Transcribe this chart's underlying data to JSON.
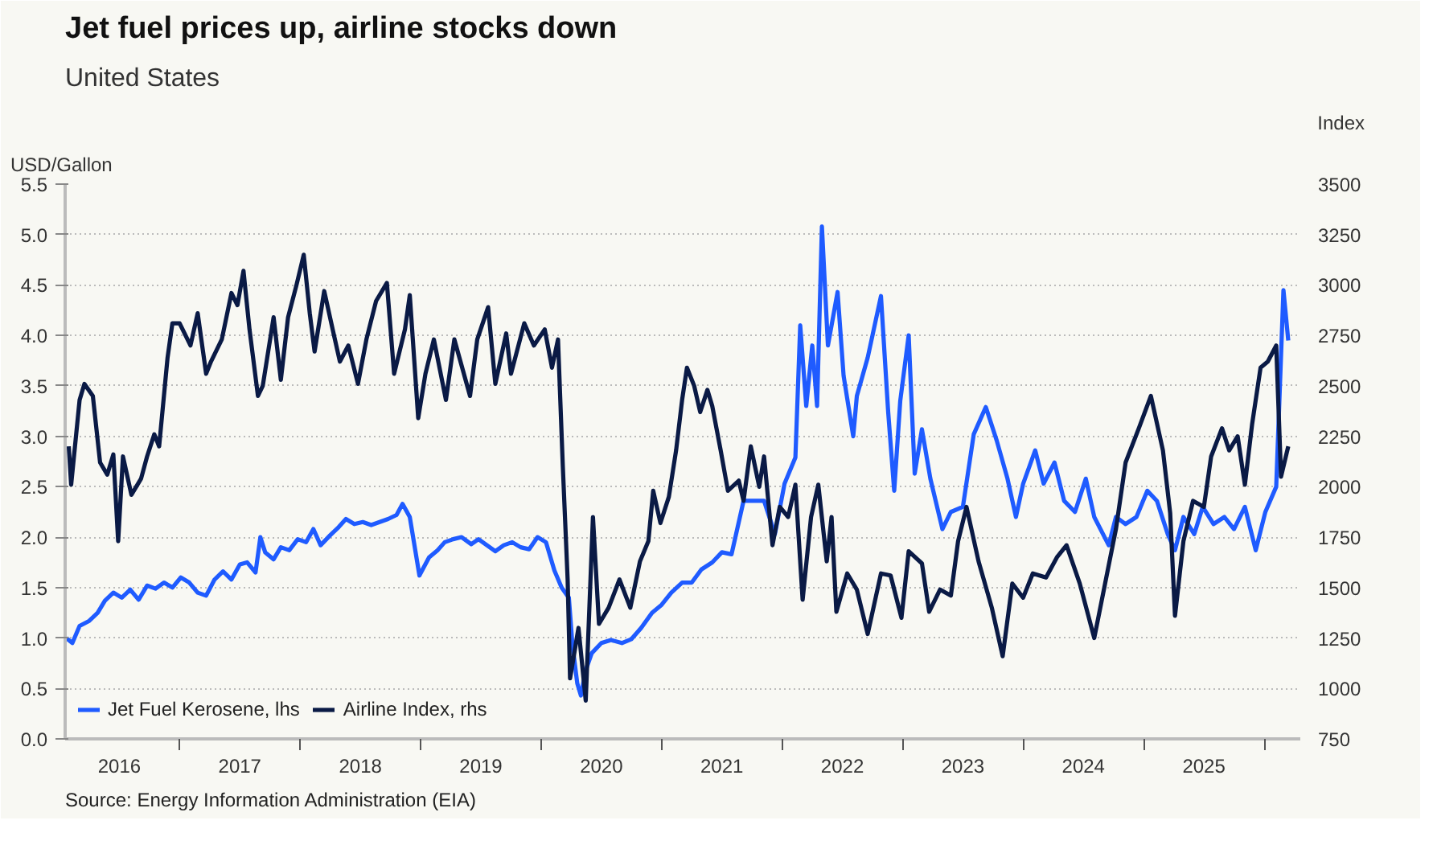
{
  "chart_data": {
    "type": "line",
    "title": "Jet fuel prices up, airline stocks down",
    "subtitle": "United States",
    "ylabel": "USD/Gallon",
    "y2label": "Index",
    "annotations": [
      "Source: Energy Information Administration (EIA)"
    ],
    "xlim": [
      2016.05,
      2026.3
    ],
    "xticks": [
      {
        "value": 2016.5,
        "label": "2016"
      },
      {
        "value": 2017.5,
        "label": "2017"
      },
      {
        "value": 2018.5,
        "label": "2018"
      },
      {
        "value": 2019.5,
        "label": "2019"
      },
      {
        "value": 2020.5,
        "label": "2020"
      },
      {
        "value": 2021.5,
        "label": "2021"
      },
      {
        "value": 2022.5,
        "label": "2022"
      },
      {
        "value": 2023.5,
        "label": "2023"
      },
      {
        "value": 2024.5,
        "label": "2024"
      },
      {
        "value": 2025.5,
        "label": "2025"
      },
      {
        "value": 2017,
        "label": null
      },
      {
        "value": 2018,
        "label": null
      },
      {
        "value": 2019,
        "label": null
      },
      {
        "value": 2020,
        "label": null
      },
      {
        "value": 2021,
        "label": null
      },
      {
        "value": 2022,
        "label": null
      },
      {
        "value": 2023,
        "label": null
      },
      {
        "value": 2024,
        "label": null
      },
      {
        "value": 2025,
        "label": null
      },
      {
        "value": 2026,
        "label": null
      }
    ],
    "ylim": [
      0,
      5.5
    ],
    "yticks": [
      {
        "value": 0,
        "label": "0.0"
      },
      0.5,
      {
        "value": 1,
        "label": "1.0"
      },
      1.5,
      {
        "value": 2,
        "label": "2.0"
      },
      2.5,
      {
        "value": 3,
        "label": "3.0"
      },
      3.5,
      {
        "value": 4,
        "label": "4.0"
      },
      4.5,
      {
        "value": 5,
        "label": "5.0"
      },
      5.5
    ],
    "y2lim": [
      750,
      3500
    ],
    "y2ticks": [
      750,
      1000,
      1250,
      1500,
      1750,
      2000,
      2250,
      2500,
      2750,
      3000,
      3250,
      3500
    ],
    "grid": "y",
    "legend": "bottom left",
    "marker": "none",
    "line_style": "solid",
    "series": [
      {
        "name": "Jet Fuel Kerosene, lhs",
        "color": "#1f5bff",
        "x": [
          2016.06,
          2016.11,
          2016.17,
          2016.25,
          2016.32,
          2016.38,
          2016.45,
          2016.52,
          2016.59,
          2016.66,
          2016.73,
          2016.8,
          2016.87,
          2016.94,
          2017.01,
          2017.08,
          2017.15,
          2017.22,
          2017.29,
          2017.36,
          2017.43,
          2017.5,
          2017.56,
          2017.63,
          2017.67,
          2017.71,
          2017.78,
          2017.84,
          2017.91,
          2017.98,
          2018.05,
          2018.11,
          2018.17,
          2018.25,
          2018.32,
          2018.38,
          2018.45,
          2018.52,
          2018.59,
          2018.66,
          2018.73,
          2018.8,
          2018.85,
          2018.91,
          2018.99,
          2019.07,
          2019.14,
          2019.2,
          2019.27,
          2019.34,
          2019.42,
          2019.48,
          2019.55,
          2019.62,
          2019.69,
          2019.76,
          2019.83,
          2019.9,
          2019.97,
          2020.04,
          2020.11,
          2020.17,
          2020.23,
          2020.26,
          2020.3,
          2020.33,
          2020.37,
          2020.42,
          2020.5,
          2020.58,
          2020.67,
          2020.75,
          2020.83,
          2020.92,
          2021.0,
          2021.08,
          2021.17,
          2021.25,
          2021.33,
          2021.42,
          2021.5,
          2021.58,
          2021.68,
          2021.77,
          2021.85,
          2021.94,
          2022.02,
          2022.11,
          2022.15,
          2022.2,
          2022.25,
          2022.29,
          2022.33,
          2022.38,
          2022.46,
          2022.51,
          2022.59,
          2022.62,
          2022.71,
          2022.82,
          2022.88,
          2022.93,
          2022.98,
          2023.05,
          2023.1,
          2023.16,
          2023.23,
          2023.33,
          2023.4,
          2023.5,
          2023.59,
          2023.69,
          2023.78,
          2023.87,
          2023.94,
          2024.0,
          2024.1,
          2024.17,
          2024.26,
          2024.34,
          2024.43,
          2024.52,
          2024.59,
          2024.71,
          2024.77,
          2024.85,
          2024.94,
          2025.03,
          2025.11,
          2025.2,
          2025.26,
          2025.33,
          2025.42,
          2025.49,
          2025.58,
          2025.67,
          2025.75,
          2025.84,
          2025.93,
          2026.01,
          2026.1,
          2026.16,
          2026.2
        ],
        "values": [
          1.0,
          0.95,
          1.12,
          1.17,
          1.25,
          1.37,
          1.45,
          1.4,
          1.48,
          1.38,
          1.52,
          1.49,
          1.55,
          1.5,
          1.6,
          1.55,
          1.45,
          1.42,
          1.58,
          1.66,
          1.58,
          1.73,
          1.75,
          1.65,
          2.0,
          1.85,
          1.78,
          1.9,
          1.87,
          1.98,
          1.95,
          2.08,
          1.92,
          2.02,
          2.1,
          2.18,
          2.13,
          2.15,
          2.12,
          2.15,
          2.18,
          2.22,
          2.33,
          2.2,
          1.62,
          1.8,
          1.87,
          1.95,
          1.98,
          2.0,
          1.93,
          1.98,
          1.92,
          1.86,
          1.92,
          1.95,
          1.9,
          1.88,
          2.0,
          1.95,
          1.67,
          1.5,
          1.4,
          0.93,
          0.55,
          0.43,
          0.68,
          0.85,
          0.95,
          0.98,
          0.95,
          0.99,
          1.1,
          1.25,
          1.33,
          1.45,
          1.55,
          1.55,
          1.68,
          1.75,
          1.85,
          1.83,
          2.36,
          2.36,
          2.36,
          2.03,
          2.53,
          2.79,
          4.1,
          3.3,
          3.9,
          3.3,
          5.08,
          3.9,
          4.43,
          3.6,
          3.0,
          3.4,
          3.78,
          4.39,
          3.24,
          2.46,
          3.35,
          4.0,
          2.63,
          3.07,
          2.58,
          2.08,
          2.25,
          2.3,
          3.02,
          3.29,
          2.96,
          2.58,
          2.2,
          2.53,
          2.86,
          2.53,
          2.74,
          2.36,
          2.25,
          2.58,
          2.2,
          1.92,
          2.2,
          2.13,
          2.2,
          2.46,
          2.36,
          2.03,
          1.87,
          2.2,
          2.03,
          2.3,
          2.13,
          2.2,
          2.08,
          2.3,
          1.87,
          2.25,
          2.5,
          4.45,
          3.95
        ]
      },
      {
        "name": "Airline Index, rhs",
        "color": "#0a1a45",
        "axis": "y2",
        "x": [
          2016.08,
          2016.1,
          2016.17,
          2016.21,
          2016.28,
          2016.34,
          2016.4,
          2016.45,
          2016.49,
          2016.53,
          2016.6,
          2016.68,
          2016.73,
          2016.79,
          2016.83,
          2016.9,
          2016.94,
          2017.0,
          2017.09,
          2017.15,
          2017.22,
          2017.26,
          2017.35,
          2017.43,
          2017.48,
          2017.53,
          2017.58,
          2017.65,
          2017.69,
          2017.78,
          2017.84,
          2017.9,
          2017.97,
          2018.03,
          2018.08,
          2018.12,
          2018.2,
          2018.27,
          2018.33,
          2018.4,
          2018.48,
          2018.55,
          2018.63,
          2018.72,
          2018.78,
          2018.87,
          2018.91,
          2018.98,
          2019.04,
          2019.11,
          2019.21,
          2019.28,
          2019.41,
          2019.47,
          2019.56,
          2019.62,
          2019.71,
          2019.75,
          2019.86,
          2019.94,
          2020.03,
          2020.09,
          2020.14,
          2020.18,
          2020.22,
          2020.24,
          2020.31,
          2020.37,
          2020.43,
          2020.48,
          2020.56,
          2020.65,
          2020.74,
          2020.82,
          2020.89,
          2020.93,
          2020.99,
          2021.06,
          2021.12,
          2021.17,
          2021.21,
          2021.27,
          2021.32,
          2021.38,
          2021.42,
          2021.49,
          2021.55,
          2021.64,
          2021.68,
          2021.74,
          2021.81,
          2021.85,
          2021.92,
          2021.98,
          2022.05,
          2022.11,
          2022.17,
          2022.24,
          2022.3,
          2022.37,
          2022.41,
          2022.45,
          2022.54,
          2022.62,
          2022.71,
          2022.82,
          2022.9,
          2022.99,
          2023.05,
          2023.16,
          2023.22,
          2023.31,
          2023.4,
          2023.46,
          2023.53,
          2023.63,
          2023.74,
          2023.83,
          2023.91,
          2024.0,
          2024.08,
          2024.19,
          2024.28,
          2024.36,
          2024.47,
          2024.59,
          2024.68,
          2024.77,
          2024.85,
          2024.96,
          2025.06,
          2025.16,
          2025.22,
          2025.26,
          2025.33,
          2025.41,
          2025.5,
          2025.56,
          2025.65,
          2025.71,
          2025.78,
          2025.84,
          2025.9,
          2025.97,
          2026.03,
          2026.1,
          2026.14,
          2026.2
        ],
        "values": [
          2200,
          2010,
          2430,
          2510,
          2450,
          2120,
          2060,
          2160,
          1730,
          2150,
          1960,
          2040,
          2150,
          2260,
          2200,
          2640,
          2810,
          2810,
          2700,
          2860,
          2560,
          2620,
          2730,
          2960,
          2900,
          3070,
          2780,
          2450,
          2500,
          2840,
          2530,
          2840,
          3000,
          3150,
          2860,
          2670,
          2970,
          2780,
          2620,
          2700,
          2510,
          2730,
          2920,
          3010,
          2560,
          2780,
          2950,
          2340,
          2560,
          2730,
          2430,
          2730,
          2450,
          2730,
          2890,
          2510,
          2760,
          2560,
          2810,
          2700,
          2780,
          2590,
          2730,
          2100,
          1540,
          1050,
          1300,
          940,
          1850,
          1320,
          1400,
          1540,
          1400,
          1630,
          1730,
          1980,
          1820,
          1950,
          2180,
          2430,
          2590,
          2500,
          2370,
          2480,
          2400,
          2180,
          1980,
          2030,
          1930,
          2200,
          2000,
          2150,
          1710,
          1900,
          1850,
          2010,
          1440,
          1850,
          2010,
          1630,
          1850,
          1380,
          1570,
          1490,
          1270,
          1570,
          1560,
          1350,
          1680,
          1620,
          1380,
          1490,
          1460,
          1730,
          1900,
          1630,
          1400,
          1160,
          1520,
          1450,
          1570,
          1550,
          1650,
          1710,
          1520,
          1250,
          1520,
          1790,
          2120,
          2290,
          2450,
          2180,
          1870,
          1360,
          1730,
          1930,
          1900,
          2150,
          2290,
          2180,
          2250,
          2010,
          2310,
          2590,
          2620,
          2700,
          2050,
          2200
        ]
      }
    ]
  }
}
